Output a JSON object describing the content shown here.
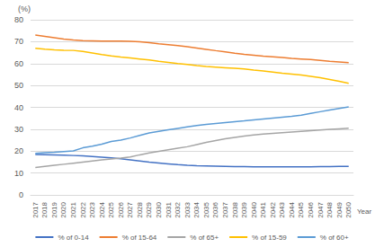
{
  "chart_data": {
    "type": "line",
    "y_label": "(%)",
    "x_label": "Year",
    "categories": [
      "2017",
      "2018",
      "2019",
      "2020",
      "2021",
      "2022",
      "2023",
      "2024",
      "2025",
      "2026",
      "2027",
      "2028",
      "2029",
      "2030",
      "2031",
      "2032",
      "2033",
      "2034",
      "2035",
      "2036",
      "2037",
      "2038",
      "2039",
      "2040",
      "2041",
      "2042",
      "2043",
      "2044",
      "2045",
      "2046",
      "2047",
      "2048",
      "2049",
      "2050"
    ],
    "series": [
      {
        "name": "% of 0-14",
        "color": "#4472c4",
        "values": [
          18.5,
          18.4,
          18.3,
          18.2,
          18.0,
          17.8,
          17.5,
          17.2,
          16.9,
          16.5,
          16.0,
          15.5,
          15.0,
          14.6,
          14.2,
          13.8,
          13.5,
          13.3,
          13.2,
          13.1,
          13.0,
          12.9,
          12.9,
          12.8,
          12.8,
          12.8,
          12.8,
          12.8,
          12.8,
          12.8,
          12.9,
          12.9,
          13.0,
          13.0
        ]
      },
      {
        "name": "% of 15-64",
        "color": "#ed7d31",
        "values": [
          73.0,
          72.4,
          71.8,
          71.2,
          70.8,
          70.5,
          70.4,
          70.3,
          70.3,
          70.3,
          70.2,
          69.9,
          69.5,
          69.0,
          68.6,
          68.2,
          67.7,
          67.1,
          66.5,
          65.9,
          65.3,
          64.7,
          64.2,
          63.8,
          63.4,
          63.1,
          62.8,
          62.4,
          62.1,
          61.8,
          61.4,
          61.0,
          60.7,
          60.4
        ]
      },
      {
        "name": "% of 65+",
        "color": "#a5a5a5",
        "values": [
          12.5,
          13.0,
          13.5,
          14.0,
          14.5,
          15.0,
          15.5,
          16.0,
          16.4,
          16.8,
          17.3,
          18.3,
          19.2,
          19.9,
          20.6,
          21.3,
          22.0,
          23.0,
          24.0,
          24.8,
          25.6,
          26.3,
          26.9,
          27.4,
          27.8,
          28.1,
          28.4,
          28.7,
          29.0,
          29.3,
          29.6,
          29.9,
          30.2,
          30.5
        ]
      },
      {
        "name": "% of 15-59",
        "color": "#ffc000",
        "values": [
          67.0,
          66.6,
          66.3,
          66.1,
          66.0,
          65.5,
          64.8,
          64.1,
          63.5,
          63.0,
          62.6,
          62.1,
          61.6,
          61.0,
          60.5,
          60.0,
          59.6,
          59.1,
          58.7,
          58.4,
          58.1,
          57.8,
          57.5,
          57.0,
          56.6,
          56.1,
          55.6,
          55.2,
          54.8,
          54.2,
          53.5,
          52.7,
          51.9,
          51.0
        ]
      },
      {
        "name": "% of 60+",
        "color": "#5b9bd5",
        "values": [
          19.0,
          19.3,
          19.5,
          19.8,
          20.1,
          21.5,
          22.3,
          23.2,
          24.4,
          25.0,
          26.0,
          27.2,
          28.3,
          29.0,
          29.7,
          30.4,
          31.1,
          31.7,
          32.2,
          32.6,
          33.0,
          33.4,
          33.8,
          34.3,
          34.7,
          35.1,
          35.5,
          35.9,
          36.4,
          37.2,
          38.0,
          38.8,
          39.5,
          40.2
        ]
      }
    ],
    "ylim": [
      0,
      80
    ],
    "yticks": [
      0,
      10,
      20,
      30,
      40,
      50,
      60,
      70,
      80
    ],
    "grid": true,
    "legend": "bottom"
  }
}
